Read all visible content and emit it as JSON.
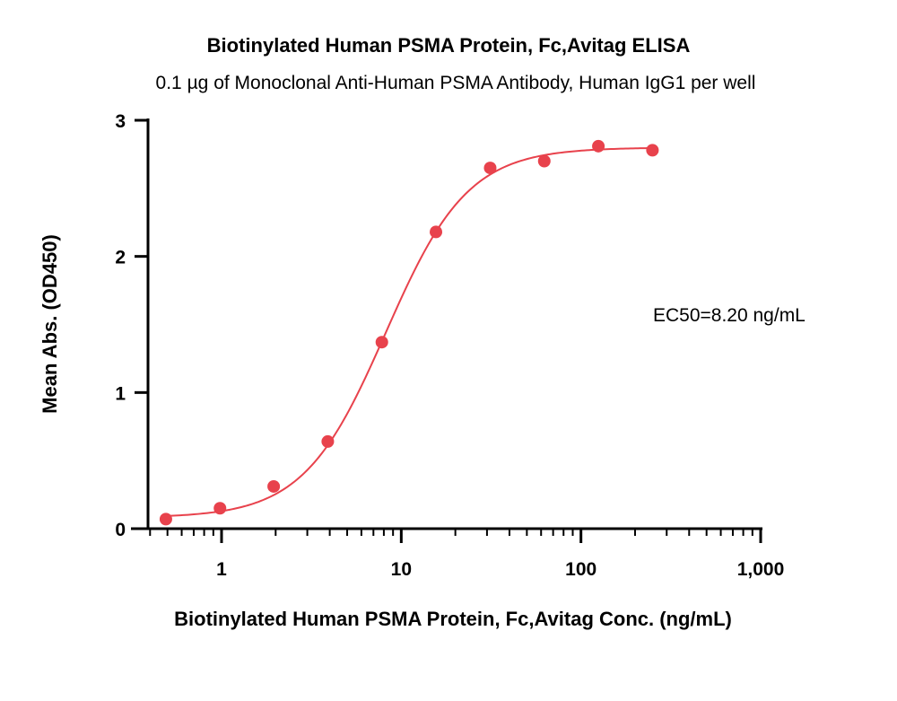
{
  "chart_data": {
    "type": "scatter",
    "title": "Biotinylated Human PSMA Protein, Fc,Avitag ELISA",
    "subtitle": "0.1 µg of Monoclonal Anti-Human PSMA Antibody, Human IgG1 per well",
    "xlabel": "Biotinylated Human PSMA Protein, Fc,Avitag Conc. (ng/mL)",
    "ylabel": "Mean Abs. (OD450)",
    "x_scale": "log",
    "xlim": [
      0.4,
      1000
    ],
    "ylim": [
      0,
      3
    ],
    "x_ticks": [
      1,
      10,
      100,
      1000
    ],
    "x_tick_labels": [
      "1",
      "10",
      "100",
      "1,000"
    ],
    "y_ticks": [
      0,
      1,
      2,
      3
    ],
    "y_tick_labels": [
      "0",
      "1",
      "2",
      "3"
    ],
    "grid": false,
    "series": [
      {
        "x": [
          0.49,
          0.98,
          1.95,
          3.9,
          7.8,
          15.6,
          31.25,
          62.5,
          125,
          250
        ],
        "y": [
          0.07,
          0.15,
          0.31,
          0.64,
          1.37,
          2.18,
          2.65,
          2.7,
          2.81,
          2.78
        ],
        "color": "#e8424c",
        "fit": "4PL"
      }
    ],
    "annotations": [
      {
        "text": "EC50=8.20 ng/mL"
      }
    ]
  }
}
